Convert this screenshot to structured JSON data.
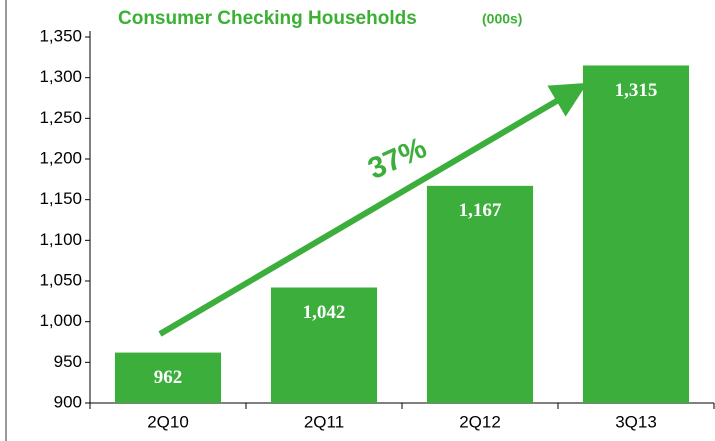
{
  "chart_data": {
    "type": "bar",
    "title": "Consumer Checking Households",
    "subtitle": "(000s)",
    "annotation": "37%",
    "categories": [
      "2Q10",
      "2Q11",
      "2Q12",
      "3Q13"
    ],
    "values": [
      962,
      1042,
      1167,
      1315
    ],
    "value_labels": [
      "962",
      "1,042",
      "1,167",
      "1,315"
    ],
    "color": "#3cae3c",
    "ylim": [
      900,
      1350
    ],
    "yticks": [
      900,
      950,
      {
        "value": 1000,
        "label": "1,000"
      },
      {
        "value": 1050,
        "label": "1,050"
      },
      {
        "value": 1100,
        "label": "1,100"
      },
      {
        "value": 1150,
        "label": "1,150"
      },
      {
        "value": 1200,
        "label": "1,200"
      },
      {
        "value": 1250,
        "label": "1,250"
      },
      {
        "value": 1300,
        "label": "1,300"
      },
      {
        "value": 1350,
        "label": "1,350"
      }
    ]
  }
}
